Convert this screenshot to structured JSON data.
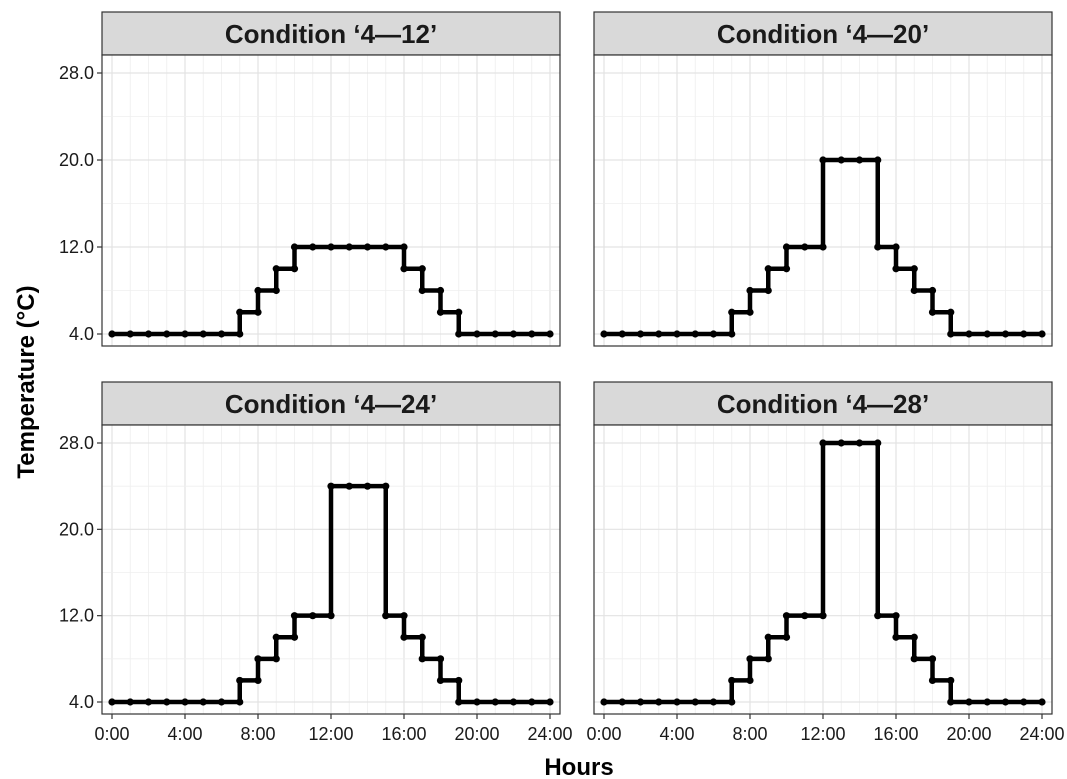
{
  "chart_data": {
    "type": "line",
    "layout": "facet-grid 2x2",
    "xlabel": "Hours",
    "ylabel": "Temperature (°C)",
    "x_ticks": [
      "0:00",
      "4:00",
      "8:00",
      "12:00",
      "16:00",
      "20:00",
      "24:00"
    ],
    "y_ticks": [
      "4.0",
      "12.0",
      "20.0",
      "28.0"
    ],
    "xlim": [
      0,
      24
    ],
    "ylim": [
      4,
      28
    ],
    "grid": true,
    "line_color": "#000000",
    "x": [
      0,
      1,
      2,
      3,
      4,
      5,
      6,
      7,
      8,
      9,
      10,
      11,
      12,
      13,
      14,
      15,
      16,
      17,
      18,
      19,
      20,
      21,
      22,
      23,
      24
    ],
    "panels": [
      {
        "title": "Condition ‘4—12’",
        "y": [
          4,
          4,
          4,
          4,
          4,
          4,
          4,
          6,
          8,
          10,
          12,
          12,
          12,
          12,
          12,
          12,
          10,
          8,
          6,
          4,
          4,
          4,
          4,
          4,
          4
        ]
      },
      {
        "title": "Condition ‘4—20’",
        "y": [
          4,
          4,
          4,
          4,
          4,
          4,
          4,
          6,
          8,
          10,
          12,
          12,
          20,
          20,
          20,
          12,
          10,
          8,
          6,
          4,
          4,
          4,
          4,
          4,
          4
        ]
      },
      {
        "title": "Condition ‘4—24’",
        "y": [
          4,
          4,
          4,
          4,
          4,
          4,
          4,
          6,
          8,
          10,
          12,
          12,
          24,
          24,
          24,
          12,
          10,
          8,
          6,
          4,
          4,
          4,
          4,
          4,
          4
        ]
      },
      {
        "title": "Condition ‘4—28’",
        "y": [
          4,
          4,
          4,
          4,
          4,
          4,
          4,
          6,
          8,
          10,
          12,
          12,
          28,
          28,
          28,
          12,
          10,
          8,
          6,
          4,
          4,
          4,
          4,
          4,
          4
        ]
      }
    ]
  }
}
